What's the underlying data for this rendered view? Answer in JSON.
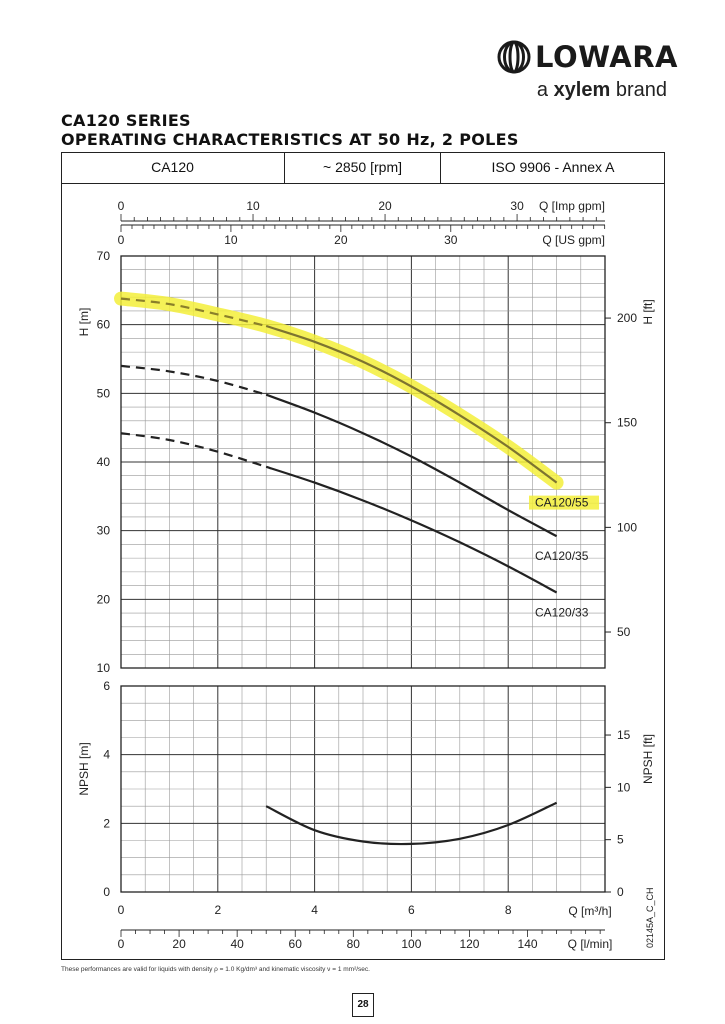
{
  "brand": {
    "name": "LOWARA",
    "tagline_prefix": "a ",
    "tagline_brand": "xylem",
    "tagline_suffix": " brand"
  },
  "title_line1": "CA120 SERIES",
  "title_line2": "OPERATING CHARACTERISTICS AT 50 Hz, 2 POLES",
  "header": {
    "model": "CA120",
    "speed": "~ 2850 [rpm]",
    "standard": "ISO 9906 - Annex A"
  },
  "footnote": "These performances are valid for liquids with density ρ = 1.0 Kg/dm³ and kinematic viscosity ν = 1 mm²/sec.",
  "page_number": "28",
  "drawing_code": "02145A_C_CH",
  "colors": {
    "highlight": "#f3ef3a",
    "curve": "#222222",
    "grid": "#555555"
  },
  "chart_data": [
    {
      "type": "line",
      "title": "",
      "xlabel": "Q [m³/h]",
      "ylabel": "H [m]",
      "y2label": "H [ft]",
      "xlim": [
        0,
        10
      ],
      "ylim": [
        10,
        70
      ],
      "x_ticks": [
        0,
        2,
        4,
        6,
        8
      ],
      "y_ticks": [
        10,
        20,
        30,
        40,
        50,
        60,
        70
      ],
      "y2_ticks": [
        50,
        100,
        150,
        200
      ],
      "grid": true,
      "extra_x_axes": [
        {
          "label": "Q [Imp gpm]",
          "ticks": [
            0,
            10,
            20,
            30
          ],
          "factor": 3.666
        },
        {
          "label": "Q [US gpm]",
          "ticks": [
            0,
            10,
            20,
            30
          ],
          "factor": 4.403
        },
        {
          "label": "Q [l/min]",
          "ticks": [
            0,
            20,
            40,
            60,
            80,
            100,
            120,
            140
          ],
          "factor": 16.667
        }
      ],
      "series": [
        {
          "name": "CA120/55",
          "highlighted": true,
          "dashed_until": 3,
          "x": [
            0,
            1,
            2,
            3,
            4,
            5,
            6,
            7,
            8,
            9
          ],
          "y": [
            63.8,
            63.0,
            61.5,
            59.8,
            57.5,
            54.6,
            51.0,
            46.8,
            42.2,
            37.0
          ]
        },
        {
          "name": "CA120/35",
          "highlighted": false,
          "dashed_until": 3,
          "x": [
            0,
            1,
            2,
            3,
            4,
            5,
            6,
            7,
            8,
            9
          ],
          "y": [
            54.0,
            53.2,
            51.8,
            49.8,
            47.2,
            44.2,
            40.8,
            37.0,
            33.0,
            29.2
          ]
        },
        {
          "name": "CA120/33",
          "highlighted": false,
          "dashed_until": 3,
          "x": [
            0,
            1,
            2,
            3,
            4,
            5,
            6,
            7,
            8,
            9
          ],
          "y": [
            44.2,
            43.2,
            41.5,
            39.3,
            37.0,
            34.4,
            31.5,
            28.3,
            24.8,
            21.0
          ]
        }
      ]
    },
    {
      "type": "line",
      "title": "",
      "xlabel": "Q [m³/h]",
      "ylabel": "NPSH [m]",
      "y2label": "NPSH [ft]",
      "xlim": [
        0,
        10
      ],
      "ylim": [
        0,
        6
      ],
      "y_ticks": [
        0,
        2,
        4,
        6
      ],
      "y2_ticks": [
        0,
        5,
        10,
        15
      ],
      "grid": true,
      "series": [
        {
          "name": "",
          "x": [
            3,
            4,
            5,
            6,
            7,
            8,
            9
          ],
          "y": [
            2.5,
            1.8,
            1.47,
            1.4,
            1.55,
            1.95,
            2.6
          ]
        }
      ]
    }
  ]
}
